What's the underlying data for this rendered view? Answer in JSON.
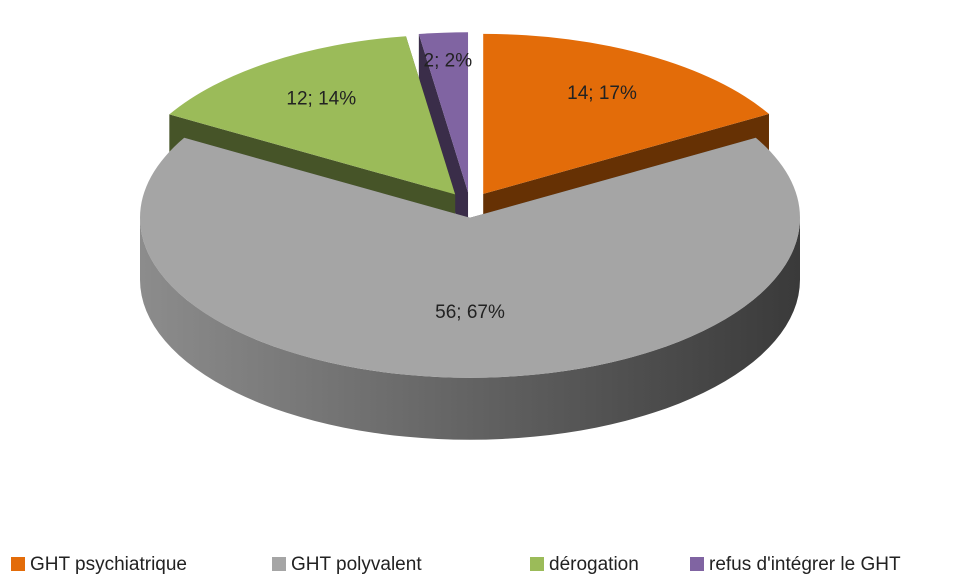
{
  "chart_data": {
    "type": "pie",
    "categories": [
      "GHT psychiatrique",
      "GHT polyvalent",
      "dérogation",
      "refus d'intégrer le GHT"
    ],
    "values": [
      14,
      56,
      12,
      2
    ],
    "value_labels": [
      "14; 17%",
      "56; 67%",
      "12; 14%",
      "2; 2%"
    ],
    "colors": [
      "#e36c09",
      "#a5a5a5",
      "#9bbb59",
      "#8064a2"
    ],
    "legend": "bottom"
  }
}
